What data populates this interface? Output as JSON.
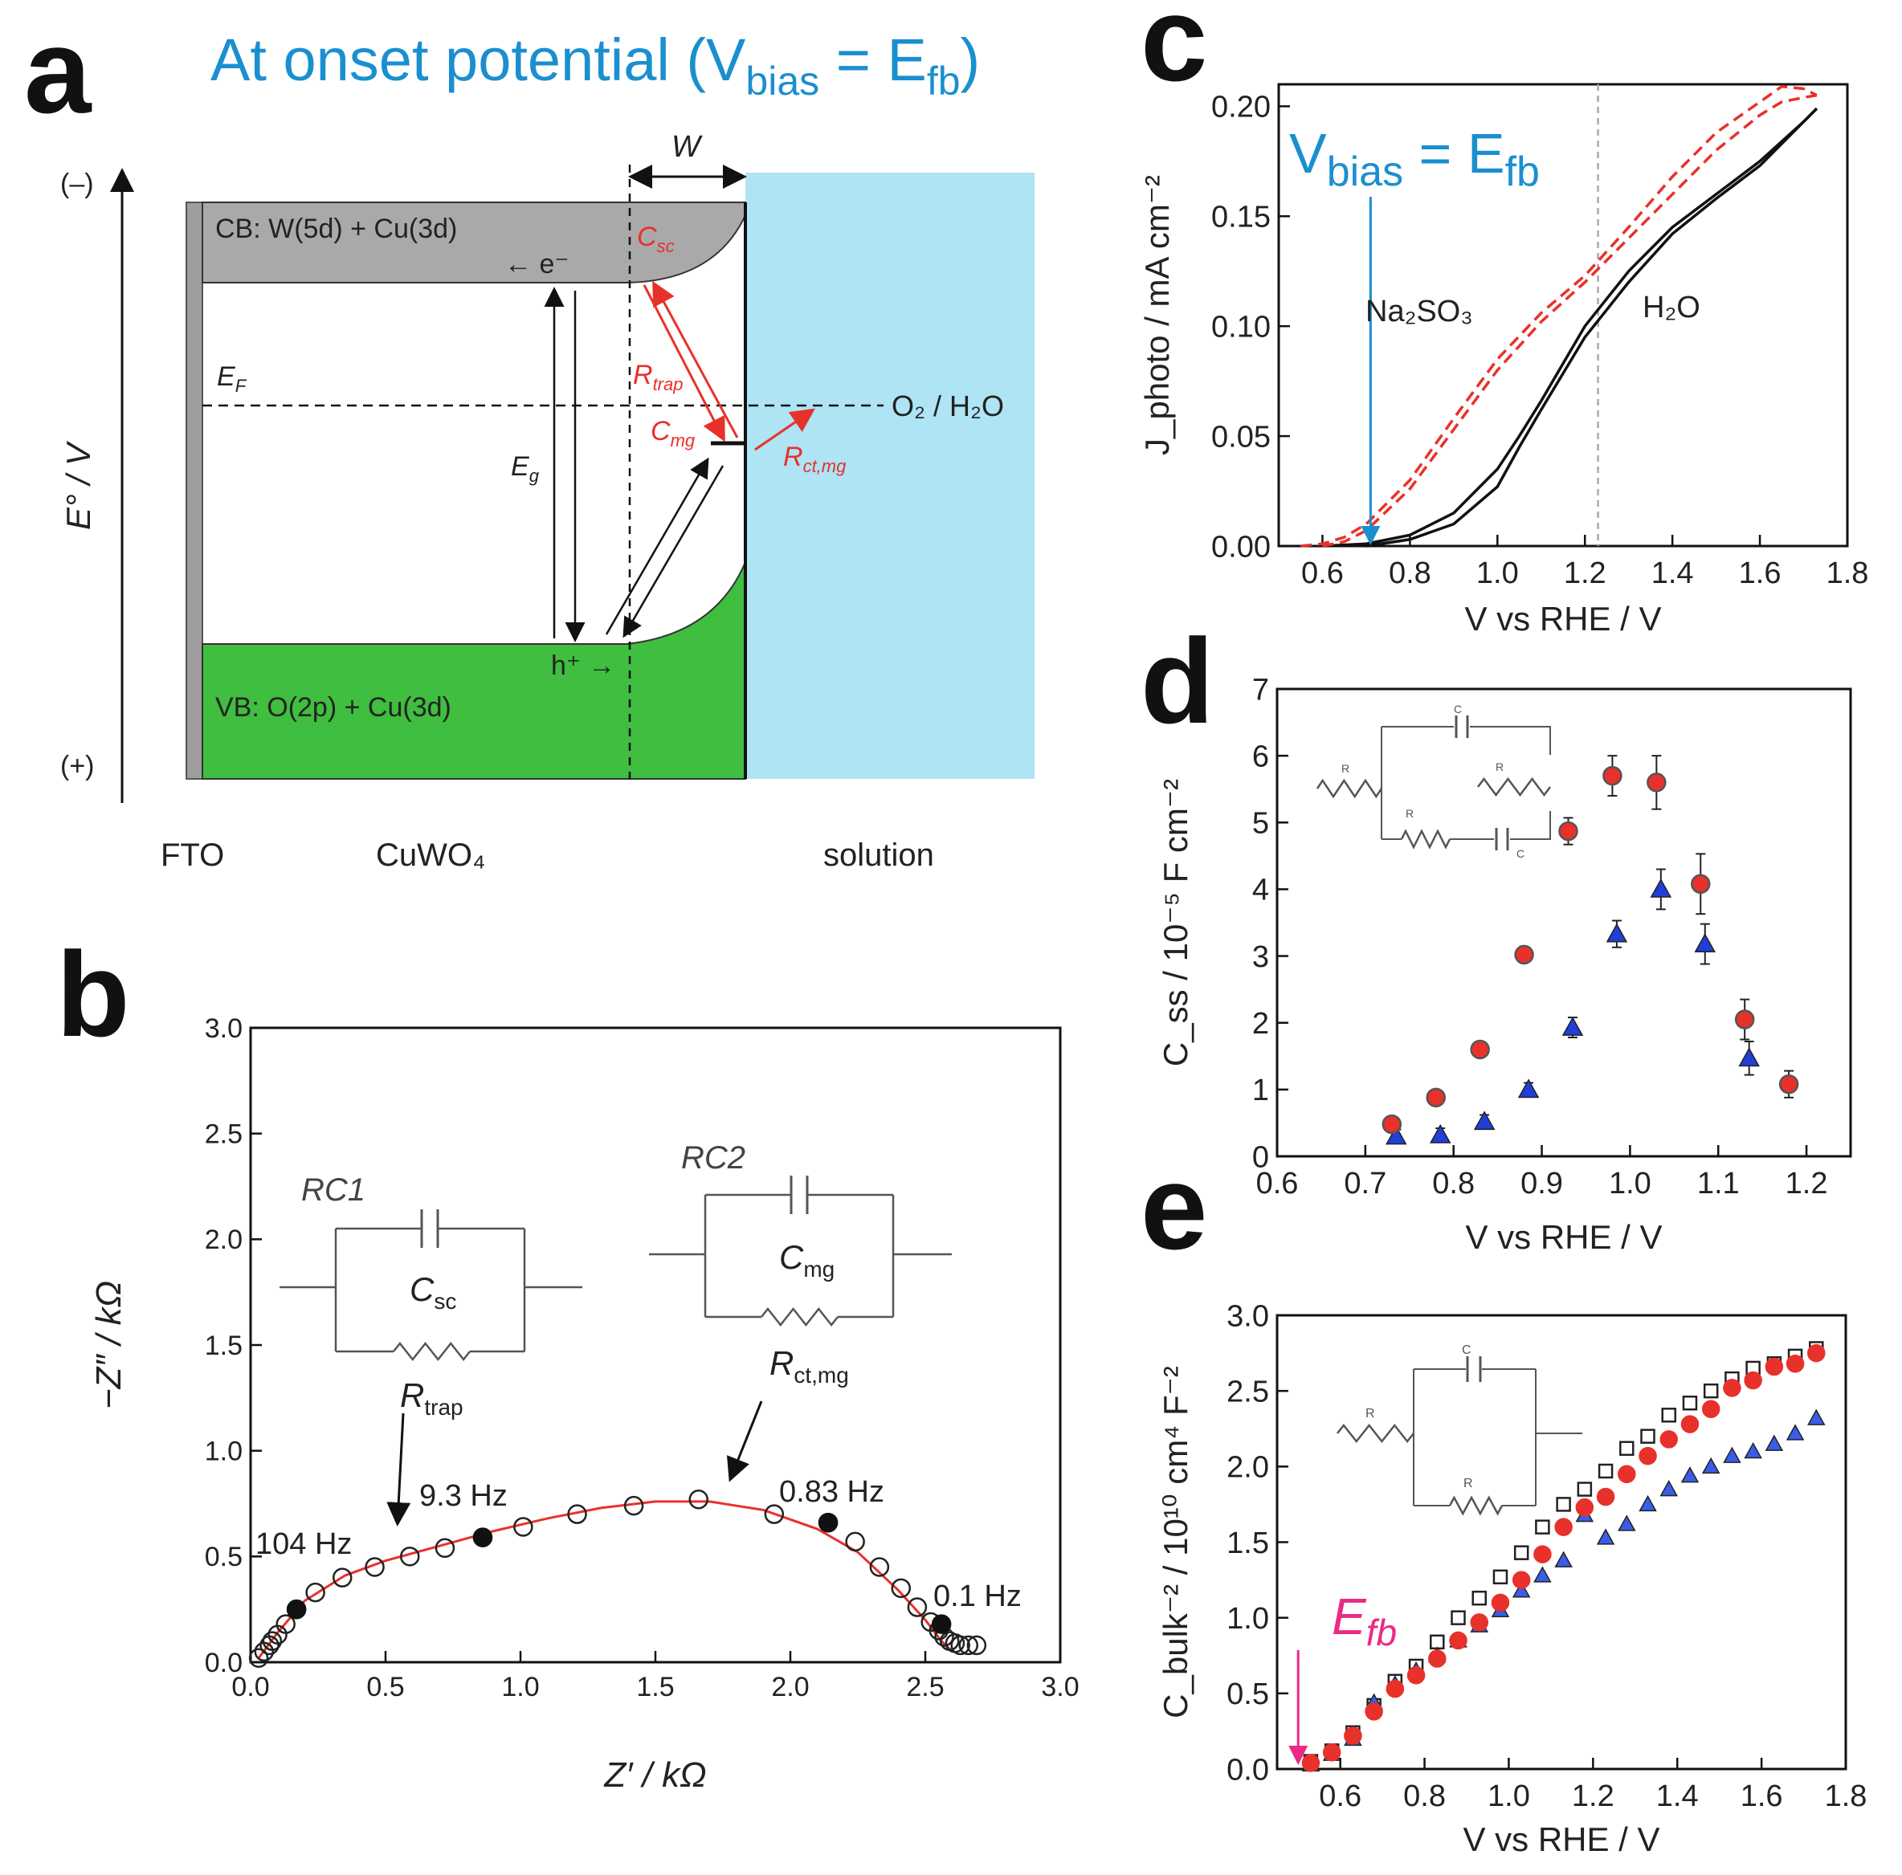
{
  "panel_a": {
    "letter": "a",
    "title_main": "At onset potential (V",
    "title_sub1": "bias",
    "title_eq": " = E",
    "title_sub2": "fb",
    "title_close": ")",
    "axis_minus": "(–)",
    "axis_plus": "(+)",
    "axis_label": "E° / V",
    "cb_label": "CB: W(5d) + Cu(3d)",
    "vb_label": "VB: O(2p) + Cu(3d)",
    "electron_label": "← e⁻",
    "hole_label": "h⁺ →",
    "w_label": "W",
    "ef_label": "E",
    "ef_sub": "F",
    "eg_label": "E",
    "eg_sub": "g",
    "redox_label": "O₂ / H₂O",
    "csc_label": "C",
    "csc_sub": "sc",
    "rtrap_label": "R",
    "rtrap_sub": "trap",
    "cmg_label": "C",
    "cmg_sub": "mg",
    "rct_label": "R",
    "rct_sub": "ct,mg",
    "fto_label": "FTO",
    "cuwo4_label": "CuWO₄",
    "solution_label": "solution",
    "colors": {
      "cb": "#a9a9a9",
      "vb": "#3fbe3f",
      "solution": "#aee4f3",
      "red": "#e8312b",
      "blue": "#1a8fd0"
    }
  },
  "chart_data": [
    {
      "panel": "b",
      "type": "scatter",
      "title": "",
      "xlabel": "Z′ / kΩ",
      "ylabel": "−Z″ / kΩ",
      "xlim": [
        0,
        3.0
      ],
      "ylim": [
        0,
        3.0
      ],
      "xticks": [
        "0.0",
        "0.5",
        "1.0",
        "1.5",
        "2.0",
        "2.5",
        "3.0"
      ],
      "yticks": [
        "0.0",
        "0.5",
        "1.0",
        "1.5",
        "2.0",
        "2.5",
        "3.0"
      ],
      "series": [
        {
          "name": "measured",
          "marker": "open-circle",
          "x": [
            0.03,
            0.05,
            0.07,
            0.08,
            0.1,
            0.13,
            0.17,
            0.24,
            0.34,
            0.46,
            0.59,
            0.72,
            0.86,
            1.01,
            1.21,
            1.42,
            1.66,
            1.94,
            2.14,
            2.24,
            2.33,
            2.41,
            2.47,
            2.52,
            2.55,
            2.57,
            2.59,
            2.61,
            2.63,
            2.66,
            2.69
          ],
          "y": [
            0.02,
            0.05,
            0.08,
            0.1,
            0.13,
            0.18,
            0.25,
            0.33,
            0.4,
            0.45,
            0.5,
            0.54,
            0.59,
            0.64,
            0.7,
            0.74,
            0.77,
            0.7,
            0.66,
            0.57,
            0.45,
            0.35,
            0.26,
            0.19,
            0.15,
            0.12,
            0.1,
            0.09,
            0.08,
            0.08,
            0.08
          ]
        },
        {
          "name": "highlighted",
          "marker": "filled-circle",
          "x": [
            0.17,
            0.86,
            2.14,
            2.56
          ],
          "y": [
            0.25,
            0.59,
            0.66,
            0.18
          ]
        },
        {
          "name": "fit",
          "marker": "line",
          "x": [
            0.03,
            0.1,
            0.2,
            0.35,
            0.5,
            0.7,
            0.9,
            1.1,
            1.3,
            1.5,
            1.7,
            1.9,
            2.1,
            2.25,
            2.4,
            2.5,
            2.56,
            2.6
          ],
          "y": [
            0.02,
            0.14,
            0.29,
            0.41,
            0.48,
            0.55,
            0.62,
            0.68,
            0.73,
            0.76,
            0.76,
            0.72,
            0.63,
            0.52,
            0.34,
            0.2,
            0.1,
            0.05
          ]
        }
      ],
      "annotations": [
        "104 Hz",
        "9.3 Hz",
        "0.83 Hz",
        "0.1 Hz"
      ],
      "circuit": {
        "rc1": "RC1",
        "rc2": "RC2",
        "c1": "C",
        "c1_sub": "sc",
        "r1": "R",
        "r1_sub": "trap",
        "c2": "C",
        "c2_sub": "mg",
        "r2": "R",
        "r2_sub": "ct,mg"
      }
    },
    {
      "panel": "c",
      "type": "line",
      "title": "",
      "xlabel": "V vs RHE / V",
      "ylabel": "J_photo / mA cm⁻²",
      "xlim": [
        0.5,
        1.8
      ],
      "ylim": [
        0,
        0.21
      ],
      "xticks": [
        "0.6",
        "0.8",
        "1.0",
        "1.2",
        "1.4",
        "1.6",
        "1.8"
      ],
      "yticks": [
        "0.00",
        "0.05",
        "0.10",
        "0.15",
        "0.20"
      ],
      "series": [
        {
          "name": "H₂O (forward)",
          "style": "solid-black",
          "x": [
            0.6,
            0.7,
            0.8,
            0.9,
            1.0,
            1.05,
            1.1,
            1.2,
            1.3,
            1.4,
            1.5,
            1.6,
            1.7,
            1.73
          ],
          "y": [
            0,
            0.001,
            0.005,
            0.015,
            0.035,
            0.05,
            0.066,
            0.1,
            0.125,
            0.145,
            0.16,
            0.175,
            0.193,
            0.199
          ]
        },
        {
          "name": "H₂O (reverse)",
          "style": "solid-black",
          "x": [
            0.7,
            0.8,
            0.9,
            1.0,
            1.05,
            1.1,
            1.2,
            1.3,
            1.4,
            1.5,
            1.6,
            1.73
          ],
          "y": [
            0,
            0.003,
            0.01,
            0.027,
            0.045,
            0.062,
            0.095,
            0.12,
            0.142,
            0.158,
            0.173,
            0.199
          ]
        },
        {
          "name": "Na₂SO₃ (forward)",
          "style": "dashed-red",
          "x": [
            0.55,
            0.6,
            0.65,
            0.7,
            0.8,
            0.9,
            1.0,
            1.1,
            1.2,
            1.3,
            1.4,
            1.5,
            1.6,
            1.65,
            1.7,
            1.73
          ],
          "y": [
            0,
            0.001,
            0.004,
            0.01,
            0.03,
            0.058,
            0.085,
            0.106,
            0.123,
            0.145,
            0.168,
            0.188,
            0.202,
            0.209,
            0.208,
            0.205
          ]
        },
        {
          "name": "Na₂SO₃ (reverse)",
          "style": "dashed-red",
          "x": [
            0.6,
            0.65,
            0.7,
            0.8,
            0.9,
            1.0,
            1.1,
            1.2,
            1.3,
            1.4,
            1.5,
            1.6,
            1.65,
            1.7,
            1.73
          ],
          "y": [
            0,
            0.002,
            0.007,
            0.026,
            0.053,
            0.08,
            0.102,
            0.12,
            0.14,
            0.16,
            0.18,
            0.196,
            0.202,
            0.204,
            0.205
          ]
        }
      ],
      "vline": 1.23,
      "arrow_x": 0.71,
      "label_na2so3": "Na₂SO₃",
      "label_h2o": "H₂O",
      "vbias_main": "V",
      "vbias_sub": "bias",
      "vbias_eq": " = E",
      "vbias_sub2": "fb"
    },
    {
      "panel": "d",
      "type": "scatter",
      "title": "",
      "xlabel": "V vs RHE / V",
      "ylabel": "C_ss / 10⁻⁵ F cm⁻²",
      "xlim": [
        0.6,
        1.25
      ],
      "ylim": [
        0,
        7
      ],
      "xticks": [
        "0.6",
        "0.7",
        "0.8",
        "0.9",
        "1.0",
        "1.1",
        "1.2"
      ],
      "yticks": [
        "0",
        "1",
        "2",
        "3",
        "4",
        "5",
        "6",
        "7"
      ],
      "series": [
        {
          "name": "red circles",
          "marker": "red-circle",
          "x": [
            0.73,
            0.78,
            0.83,
            0.88,
            0.93,
            0.98,
            1.03,
            1.08,
            1.13,
            1.18
          ],
          "y": [
            0.48,
            0.88,
            1.6,
            3.02,
            4.87,
            5.7,
            5.6,
            4.08,
            2.05,
            1.08
          ],
          "err": [
            0.1,
            0.1,
            0.1,
            0.1,
            0.2,
            0.3,
            0.4,
            0.45,
            0.3,
            0.2
          ]
        },
        {
          "name": "blue triangles",
          "marker": "blue-triangle",
          "x": [
            0.735,
            0.785,
            0.835,
            0.885,
            0.935,
            0.985,
            1.035,
            1.085,
            1.135
          ],
          "y": [
            0.3,
            0.32,
            0.52,
            1.0,
            1.93,
            3.33,
            4.0,
            3.18,
            1.47
          ],
          "err": [
            0.1,
            0.1,
            0.1,
            0.1,
            0.15,
            0.2,
            0.3,
            0.3,
            0.25
          ]
        }
      ],
      "circuit": [
        "R",
        "C",
        "R",
        "R",
        "C"
      ]
    },
    {
      "panel": "e",
      "type": "scatter",
      "title": "",
      "xlabel": "V vs RHE / V",
      "ylabel": "C_bulk⁻² / 10¹⁰ cm⁴ F⁻²",
      "xlim": [
        0.45,
        1.8
      ],
      "ylim": [
        0,
        3.0
      ],
      "xticks": [
        "0.6",
        "0.8",
        "1.0",
        "1.2",
        "1.4",
        "1.6",
        "1.8"
      ],
      "yticks": [
        "0.0",
        "0.5",
        "1.0",
        "1.5",
        "2.0",
        "2.5",
        "3.0"
      ],
      "series": [
        {
          "name": "black squares",
          "marker": "open-square",
          "x": [
            0.53,
            0.58,
            0.63,
            0.68,
            0.73,
            0.78,
            0.83,
            0.88,
            0.93,
            0.98,
            1.03,
            1.08,
            1.13,
            1.18,
            1.23,
            1.28,
            1.33,
            1.38,
            1.43,
            1.48,
            1.53,
            1.58,
            1.63,
            1.68,
            1.73
          ],
          "y": [
            0.05,
            0.12,
            0.24,
            0.42,
            0.58,
            0.68,
            0.84,
            1.0,
            1.13,
            1.27,
            1.43,
            1.6,
            1.75,
            1.85,
            1.97,
            2.12,
            2.2,
            2.34,
            2.42,
            2.5,
            2.58,
            2.65,
            2.68,
            2.73,
            2.78
          ]
        },
        {
          "name": "red circles",
          "marker": "red-circle",
          "x": [
            0.53,
            0.58,
            0.63,
            0.68,
            0.73,
            0.78,
            0.83,
            0.88,
            0.93,
            0.98,
            1.03,
            1.08,
            1.13,
            1.18,
            1.23,
            1.28,
            1.33,
            1.38,
            1.43,
            1.48,
            1.53,
            1.58,
            1.63,
            1.68,
            1.73
          ],
          "y": [
            0.04,
            0.11,
            0.22,
            0.38,
            0.53,
            0.62,
            0.73,
            0.85,
            0.97,
            1.1,
            1.25,
            1.42,
            1.6,
            1.73,
            1.8,
            1.95,
            2.07,
            2.18,
            2.28,
            2.38,
            2.52,
            2.57,
            2.66,
            2.68,
            2.75
          ]
        },
        {
          "name": "blue triangles",
          "marker": "blue-triangle",
          "x": [
            0.53,
            0.58,
            0.63,
            0.68,
            0.73,
            0.78,
            0.83,
            0.88,
            0.93,
            0.98,
            1.03,
            1.08,
            1.13,
            1.18,
            1.23,
            1.28,
            1.33,
            1.38,
            1.43,
            1.48,
            1.53,
            1.58,
            1.63,
            1.68,
            1.73
          ],
          "y": [
            0.03,
            0.1,
            0.2,
            0.44,
            0.56,
            0.65,
            0.75,
            0.85,
            0.95,
            1.05,
            1.18,
            1.28,
            1.38,
            1.68,
            1.53,
            1.62,
            1.75,
            1.85,
            1.94,
            2.0,
            2.07,
            2.1,
            2.15,
            2.22,
            2.32
          ]
        }
      ],
      "efb_main": "E",
      "efb_sub": "fb",
      "efb_x": 0.5,
      "circuit": [
        "R",
        "C",
        "R"
      ]
    }
  ],
  "panel_labels": {
    "b": "b",
    "c": "c",
    "d": "d",
    "e": "e"
  }
}
